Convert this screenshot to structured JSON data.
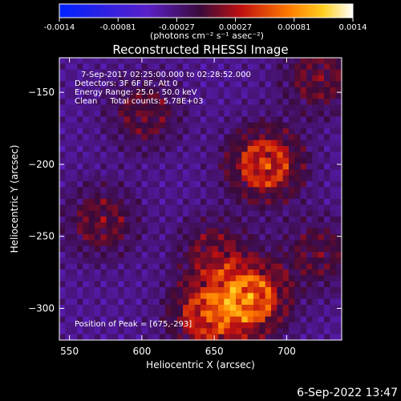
{
  "colorbar": {
    "ticks": [
      "-0.0014",
      "-0.00081",
      "-0.00027",
      "0.00027",
      "0.00081",
      "0.0014"
    ],
    "unit_label": "(photons cm⁻² s⁻¹ asec⁻²)",
    "vmin": -0.0014,
    "vmax": 0.0014,
    "colormap": "blue-purple-red-yellow-white"
  },
  "chart_data": {
    "type": "heatmap",
    "title": "Reconstructed RHESSI Image",
    "xlabel": "Heliocentric X (arcsec)",
    "ylabel": "Heliocentric Y (arcsec)",
    "xlim": [
      543,
      738
    ],
    "ylim": [
      -322,
      -126
    ],
    "xticks": [
      550,
      600,
      650,
      700
    ],
    "yticks": [
      -150,
      -200,
      -250,
      -300
    ],
    "grid": false,
    "annotations": [
      "7-Sep-2017 02:25:00.000 to 02:28:52.000",
      "Detectors: 3F 6F 8F, Att 0",
      "Energy Range: 25.0 - 50.0 keV",
      "Clean     Total counts: 5.78E+03"
    ],
    "peak_label": "Position of Peak = [675,-293]",
    "sources": [
      {
        "x": 675,
        "y": -293,
        "value": 0.0014
      },
      {
        "x": 685,
        "y": -200,
        "value": 0.0012
      },
      {
        "x": 645,
        "y": -305,
        "value": 0.00105
      },
      {
        "x": 572,
        "y": -240,
        "value": 0.0006
      },
      {
        "x": 722,
        "y": -140,
        "value": 0.0006
      },
      {
        "x": 602,
        "y": -165,
        "value": 0.00055
      },
      {
        "x": 722,
        "y": -262,
        "value": 0.0005
      },
      {
        "x": 650,
        "y": -262,
        "value": 0.0006
      }
    ]
  },
  "footer": {
    "date": "6-Sep-2022 13:47"
  }
}
